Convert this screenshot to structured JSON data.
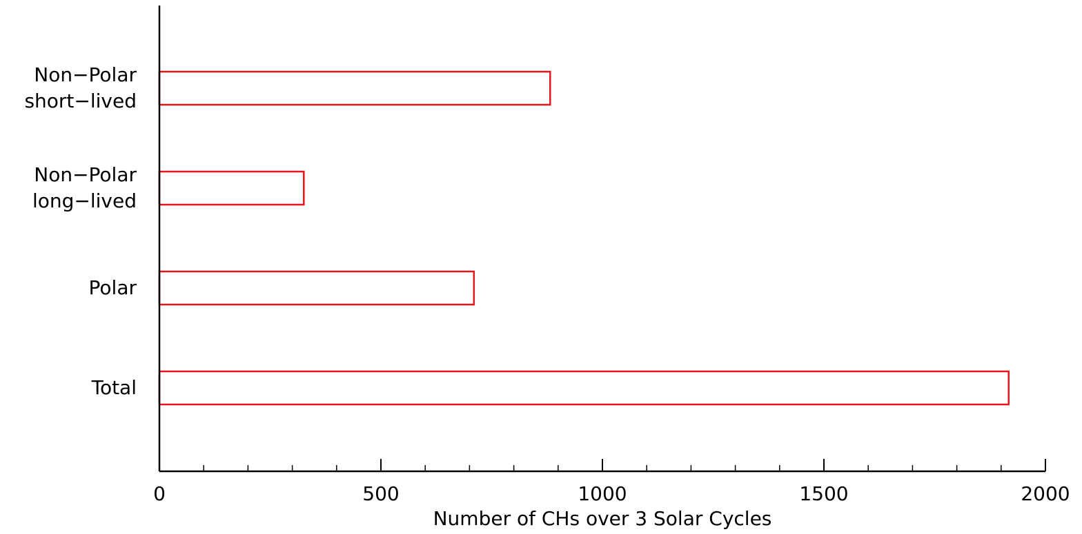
{
  "chart_data": {
    "type": "barh",
    "xlabel": "Number of CHs over 3 Solar Cycles",
    "categories": [
      "Non−Polar\nshort−lived",
      "Non−Polar\nlong−lived",
      "Polar",
      "Total"
    ],
    "values": [
      882,
      326,
      710,
      1917
    ],
    "color": "#e8141c",
    "xlim": [
      0,
      2000
    ],
    "xticks": [
      0,
      500,
      1000,
      1500,
      2000
    ],
    "xminorticks": [
      100,
      200,
      300,
      400,
      600,
      700,
      800,
      900,
      1100,
      1200,
      1300,
      1400,
      1600,
      1700,
      1800,
      1900
    ]
  }
}
